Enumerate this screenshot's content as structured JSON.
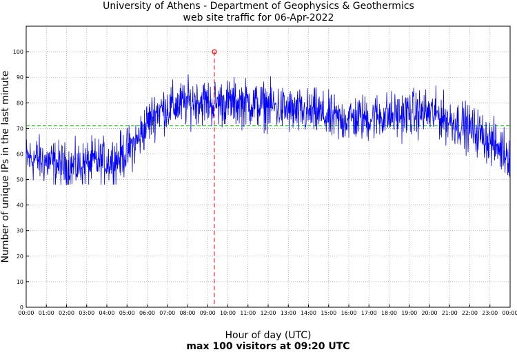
{
  "chart_data": {
    "type": "line",
    "title": "University of Athens - Department of Geophysics & Geothermics",
    "subtitle": "web site traffic for 06-Apr-2022",
    "xlabel": "Hour of day (UTC)",
    "ylabel": "Number of unique IPs in the last minute",
    "footer": "max 100 visitors at 09:20 UTC",
    "x_ticks": [
      "00:00",
      "01:00",
      "02:00",
      "03:00",
      "04:00",
      "05:00",
      "06:00",
      "07:00",
      "08:00",
      "09:00",
      "10:00",
      "11:00",
      "12:00",
      "13:00",
      "14:00",
      "15:00",
      "16:00",
      "17:00",
      "18:00",
      "19:00",
      "20:00",
      "21:00",
      "22:00",
      "23:00",
      "00:00"
    ],
    "y_ticks": [
      "0",
      "10",
      "20",
      "30",
      "40",
      "50",
      "60",
      "70",
      "80",
      "90",
      "100"
    ],
    "xlim": [
      0,
      24
    ],
    "ylim": [
      0,
      110
    ],
    "grid": true,
    "series": [
      {
        "color": "#0000ff",
        "x": [
          0,
          0.5,
          1,
          1.5,
          2,
          2.5,
          3,
          3.5,
          4,
          4.5,
          5,
          5.5,
          6,
          6.5,
          7,
          7.5,
          8,
          8.5,
          9,
          9.5,
          10,
          10.5,
          11,
          11.5,
          12,
          12.5,
          13,
          13.5,
          14,
          14.5,
          15,
          15.5,
          16,
          16.5,
          17,
          17.5,
          18,
          18.5,
          19,
          19.5,
          20,
          20.5,
          21,
          21.5,
          22,
          22.5,
          23,
          23.5,
          24
        ],
        "y": [
          58,
          58,
          57,
          56,
          55,
          55,
          56,
          57,
          57,
          58,
          61,
          65,
          72,
          77,
          78,
          79,
          80,
          81,
          80,
          80,
          80,
          80,
          80,
          79,
          79,
          78,
          77,
          76,
          76,
          76,
          74,
          73,
          74,
          74,
          74,
          75,
          75,
          75,
          76,
          76,
          76,
          75,
          73,
          72,
          70,
          68,
          65,
          62,
          60
        ]
      }
    ],
    "average": {
      "value": 71,
      "color": "#00cc00"
    },
    "max_marker": {
      "x": 9.333,
      "y": 100,
      "color": "#ff0000"
    }
  }
}
